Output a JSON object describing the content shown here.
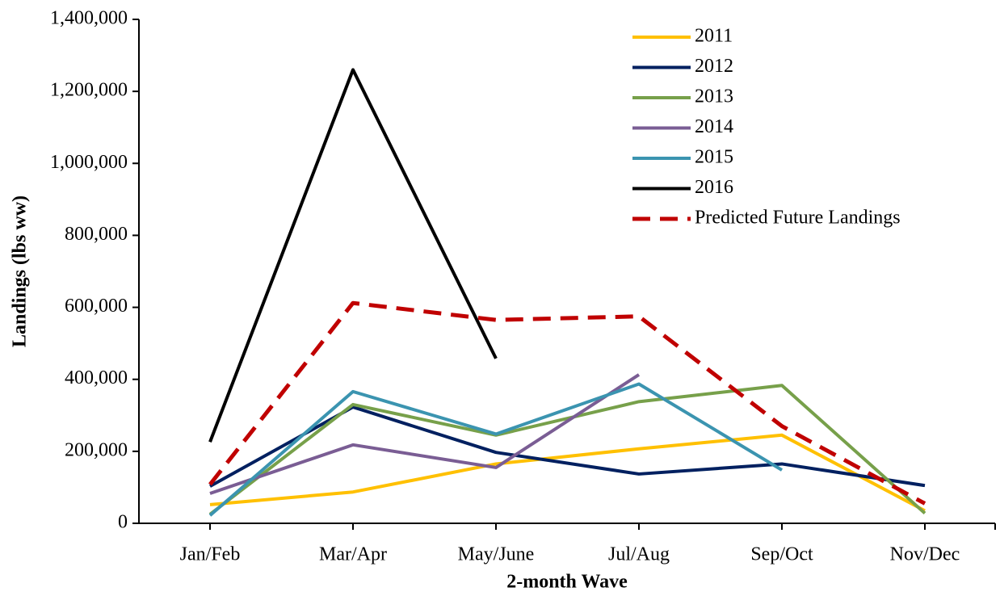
{
  "chart_data": {
    "type": "line",
    "xlabel": "2-month Wave",
    "ylabel": "Landings (lbs ww)",
    "categories": [
      "Jan/Feb",
      "Mar/Apr",
      "May/June",
      "Jul/Aug",
      "Sep/Oct",
      "Nov/Dec"
    ],
    "series": [
      {
        "name": "2011",
        "color": "#ffc000",
        "values": [
          52000,
          87000,
          165000,
          207000,
          245000,
          35000
        ]
      },
      {
        "name": "2012",
        "color": "#002060",
        "values": [
          103000,
          323000,
          197000,
          137000,
          165000,
          105000
        ]
      },
      {
        "name": "2013",
        "color": "#77a04a",
        "values": [
          25000,
          330000,
          245000,
          338000,
          383000,
          28000
        ]
      },
      {
        "name": "2014",
        "color": "#7a5d94",
        "values": [
          83000,
          218000,
          155000,
          413000,
          null,
          null
        ]
      },
      {
        "name": "2015",
        "color": "#3b94b0",
        "values": [
          22000,
          366000,
          248000,
          387000,
          148000,
          null
        ]
      },
      {
        "name": "2016",
        "color": "#000000",
        "values": [
          226000,
          1260000,
          458000,
          null,
          null,
          null
        ]
      },
      {
        "name": "Predicted Future Landings",
        "color": "#c00000",
        "dashed": true,
        "values": [
          108000,
          612000,
          565000,
          575000,
          270000,
          55000
        ]
      }
    ],
    "ylim": [
      0,
      1400000
    ],
    "yticks": [
      0,
      {
        "value": 200000,
        "label": "200,000"
      },
      {
        "value": 400000,
        "label": "400,000"
      },
      {
        "value": 600000,
        "label": "600,000"
      },
      {
        "value": 800000,
        "label": "800,000"
      },
      {
        "value": 1000000,
        "label": "1,000,000"
      },
      {
        "value": 1200000,
        "label": "1,200,000"
      },
      {
        "value": 1400000,
        "label": "1,400,000"
      }
    ],
    "legend": "upper right",
    "grid": false
  }
}
